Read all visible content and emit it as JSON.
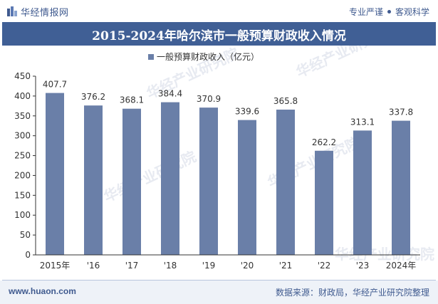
{
  "header": {
    "brand_name": "华经情报网",
    "tags": [
      "专业严谨",
      "客观科学"
    ]
  },
  "colors": {
    "brand": "#3f5a8f",
    "title_bg": "#405f95",
    "bar": "#6a7fa8"
  },
  "chart_data": {
    "type": "bar",
    "title": "2015-2024年哈尔滨市一般预算财政收入情况",
    "categories": [
      "2015年",
      "'16",
      "'17",
      "'18",
      "'19",
      "'20",
      "'21",
      "'22",
      "'23",
      "2024年"
    ],
    "series": [
      {
        "name": "一般预算财政收入（亿元）",
        "values": [
          407.7,
          376.2,
          368.1,
          384.4,
          370.9,
          339.6,
          365.8,
          262.2,
          313.1,
          337.8
        ]
      }
    ],
    "ylim": [
      0,
      450
    ],
    "yticks": [
      0,
      50,
      100,
      150,
      200,
      250,
      300,
      350,
      400,
      450
    ],
    "legend_position": "top-center",
    "grid": false
  },
  "footer": {
    "url": "www.huaon.com",
    "source": "数据来源：财政局，华经产业研究院整理"
  },
  "watermark": "华经产业研究院 www.huaon.com"
}
